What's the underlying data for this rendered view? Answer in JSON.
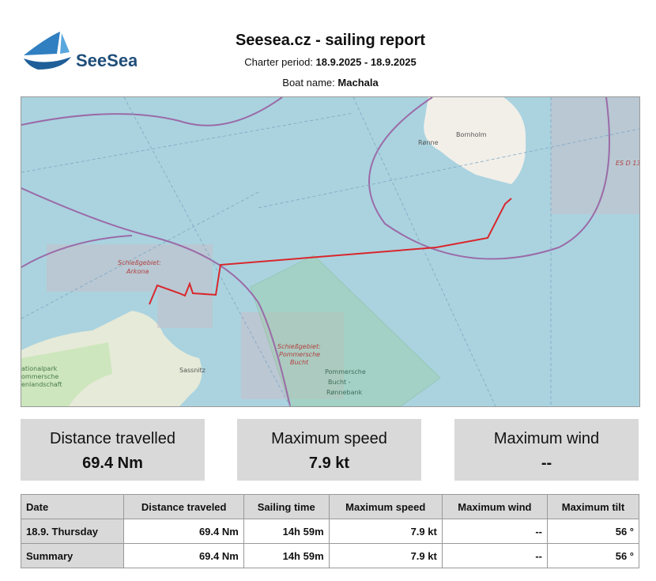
{
  "header": {
    "logo": "SeeSea",
    "title": "Seesea.cz - sailing report",
    "charter_label": "Charter period:",
    "charter_value": "18.9.2025 - 18.9.2025",
    "boat_label": "Boat name:",
    "boat_value": "Machala"
  },
  "map": {
    "labels": [
      "Bornholm",
      "Rønne",
      "ES D 13",
      "Schießgebiet:",
      "Arkona",
      "Schießgebiet:",
      "Pommersche",
      "Bucht",
      "Pommersche",
      "Bucht -",
      "Rønnebank",
      "Sassnitz",
      "ationalpark",
      "ommersche",
      "enlandschaft"
    ]
  },
  "stats": [
    {
      "label": "Distance travelled",
      "value": "69.4 Nm"
    },
    {
      "label": "Maximum speed",
      "value": "7.9 kt"
    },
    {
      "label": "Maximum wind",
      "value": "--"
    }
  ],
  "table": {
    "headers": [
      "Date",
      "Distance traveled",
      "Sailing time",
      "Maximum speed",
      "Maximum wind",
      "Maximum tilt"
    ],
    "rows": [
      [
        "18.9. Thursday",
        "69.4  Nm",
        "14h 59m",
        "7.9 kt",
        "--",
        "56 °"
      ],
      [
        "Summary",
        "69.4  Nm",
        "14h 59m",
        "7.9 kt",
        "--",
        "56 °"
      ]
    ]
  }
}
